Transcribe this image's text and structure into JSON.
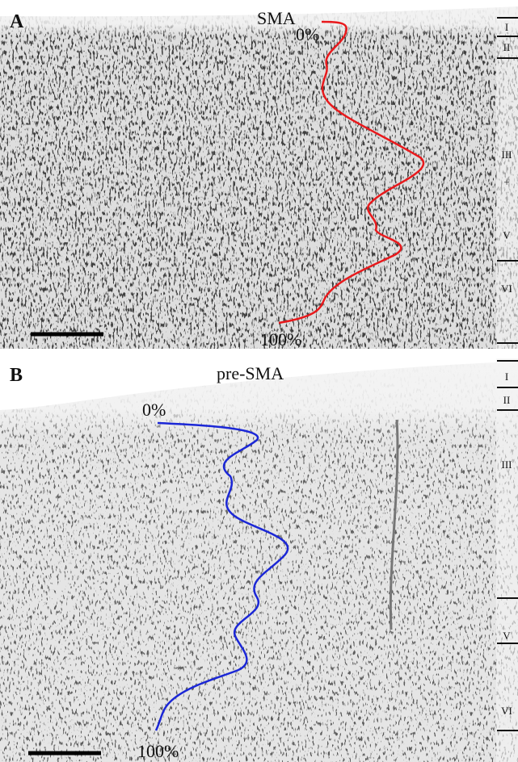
{
  "panels": [
    {
      "letter": "A",
      "title": "SMA",
      "start_label": "0%",
      "end_label": "100%",
      "layers": [
        "I",
        "II",
        "III",
        "+",
        "V",
        "VI"
      ]
    },
    {
      "letter": "B",
      "title": "pre-SMA",
      "start_label": "0%",
      "end_label": "100%",
      "layers": [
        "I",
        "II",
        "III",
        "V",
        "VI"
      ]
    }
  ]
}
